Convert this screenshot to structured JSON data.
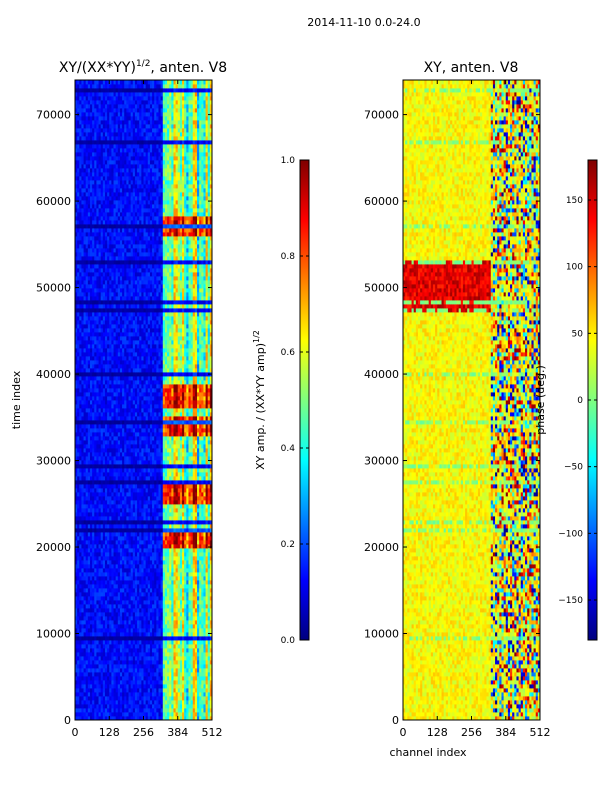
{
  "suptitle": "2014-11-10 0.0-24.0",
  "colors": {
    "jet": [
      "#00007f",
      "#0000ff",
      "#007fff",
      "#00ffff",
      "#7fff7f",
      "#ffff00",
      "#ff7f00",
      "#ff0000",
      "#7f0000"
    ]
  },
  "chart_data": [
    {
      "type": "heatmap",
      "title_main": "XY/(XX*YY)",
      "title_exp": "1/2",
      "title_tail": ", anten. V8",
      "xlabel": "",
      "ylabel": "time index",
      "xlim": [
        0,
        512
      ],
      "ylim": [
        0,
        74000
      ],
      "xticks": [
        "0",
        "128",
        "256",
        "384",
        "512"
      ],
      "xtick_values": [
        0,
        128,
        256,
        384,
        512
      ],
      "yticks": [
        "0",
        "10000",
        "20000",
        "30000",
        "40000",
        "50000",
        "60000",
        "70000"
      ],
      "ytick_values": [
        0,
        10000,
        20000,
        30000,
        40000,
        50000,
        60000,
        70000
      ],
      "colorbar": {
        "label_main": "XY amp. / (XX*YY amp)",
        "label_exp": "1/2",
        "range": [
          0.0,
          1.0
        ],
        "ticks": [
          "0.0",
          "0.2",
          "0.4",
          "0.6",
          "0.8",
          "1.0"
        ],
        "tick_values": [
          0.0,
          0.2,
          0.4,
          0.6,
          0.8,
          1.0
        ]
      },
      "description_values": {
        "background_level": 0.12,
        "high_channel_band_start": 325,
        "high_channel_band_level": 0.45,
        "bright_bursts_time": [
          21000,
          26000,
          34000,
          37500,
          57000
        ]
      }
    },
    {
      "type": "heatmap",
      "title_main": "XY, anten. V8",
      "xlabel": "channel index",
      "ylabel": "",
      "xlim": [
        0,
        512
      ],
      "ylim": [
        0,
        74000
      ],
      "xticks": [
        "0",
        "128",
        "256",
        "384",
        "512"
      ],
      "xtick_values": [
        0,
        128,
        256,
        384,
        512
      ],
      "yticks": [
        "0",
        "10000",
        "20000",
        "30000",
        "40000",
        "50000",
        "60000",
        "70000"
      ],
      "ytick_values": [
        0,
        10000,
        20000,
        30000,
        40000,
        50000,
        60000,
        70000
      ],
      "colorbar": {
        "label": "phase (deg.)",
        "range": [
          -180,
          180
        ],
        "ticks": [
          "−150",
          "−100",
          "−50",
          "0",
          "50",
          "100",
          "150"
        ],
        "tick_values": [
          -150,
          -100,
          -50,
          0,
          50,
          100,
          150
        ]
      },
      "description_values": {
        "background_phase": 45,
        "high_channel_band_start": 325,
        "warm_band_time": [
          47000,
          53000
        ]
      }
    }
  ]
}
